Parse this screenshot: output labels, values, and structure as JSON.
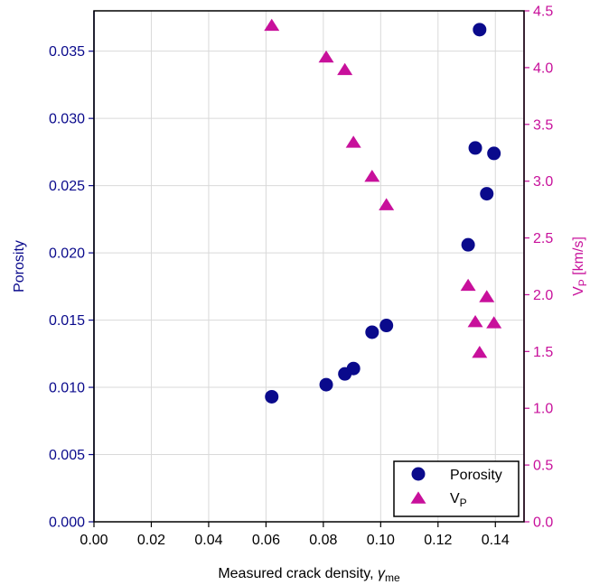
{
  "chart_data": {
    "type": "scatter",
    "xlabel": {
      "main": "Measured crack density, ",
      "symbol": "γ",
      "sub": "me"
    },
    "ylabel_left": "Porosity",
    "ylabel_right": {
      "main": "V",
      "sub": "P",
      "unit": " [km/s]"
    },
    "xlim": [
      0,
      0.15
    ],
    "ylim_left": [
      0,
      0.038
    ],
    "ylim_right": [
      0,
      4.5
    ],
    "x_ticks": [
      "0.00",
      "0.02",
      "0.04",
      "0.06",
      "0.08",
      "0.10",
      "0.12",
      "0.14"
    ],
    "y_left_ticks": [
      "0.000",
      "0.005",
      "0.010",
      "0.015",
      "0.020",
      "0.025",
      "0.030",
      "0.035"
    ],
    "y_right_ticks": [
      "0.0",
      "0.5",
      "1.0",
      "1.5",
      "2.0",
      "2.5",
      "3.0",
      "3.5",
      "4.0",
      "4.5"
    ],
    "grid": true,
    "legend_position": "bottom-right",
    "series": [
      {
        "name": "Porosity",
        "axis": "left",
        "marker": "circle",
        "color": "#0a0a8c",
        "points": [
          {
            "x": 0.062,
            "y": 0.0093
          },
          {
            "x": 0.081,
            "y": 0.0102
          },
          {
            "x": 0.0875,
            "y": 0.011
          },
          {
            "x": 0.0905,
            "y": 0.0114
          },
          {
            "x": 0.097,
            "y": 0.0141
          },
          {
            "x": 0.102,
            "y": 0.0146
          },
          {
            "x": 0.1305,
            "y": 0.0206
          },
          {
            "x": 0.133,
            "y": 0.0278
          },
          {
            "x": 0.1345,
            "y": 0.0366
          },
          {
            "x": 0.137,
            "y": 0.0244
          },
          {
            "x": 0.1395,
            "y": 0.0274
          }
        ]
      },
      {
        "name": "V",
        "name_sub": "P",
        "axis": "right",
        "marker": "triangle",
        "color": "#c8109b",
        "points": [
          {
            "x": 0.062,
            "y": 4.37
          },
          {
            "x": 0.081,
            "y": 4.09
          },
          {
            "x": 0.0875,
            "y": 3.98
          },
          {
            "x": 0.0905,
            "y": 3.34
          },
          {
            "x": 0.097,
            "y": 3.04
          },
          {
            "x": 0.102,
            "y": 2.79
          },
          {
            "x": 0.1305,
            "y": 2.08
          },
          {
            "x": 0.133,
            "y": 1.76
          },
          {
            "x": 0.1345,
            "y": 1.49
          },
          {
            "x": 0.137,
            "y": 1.98
          },
          {
            "x": 0.1395,
            "y": 1.75
          }
        ]
      }
    ],
    "colors": {
      "left_axis": "#0a0a8c",
      "right_axis": "#c8109b",
      "grid": "#d9d9d9"
    }
  }
}
